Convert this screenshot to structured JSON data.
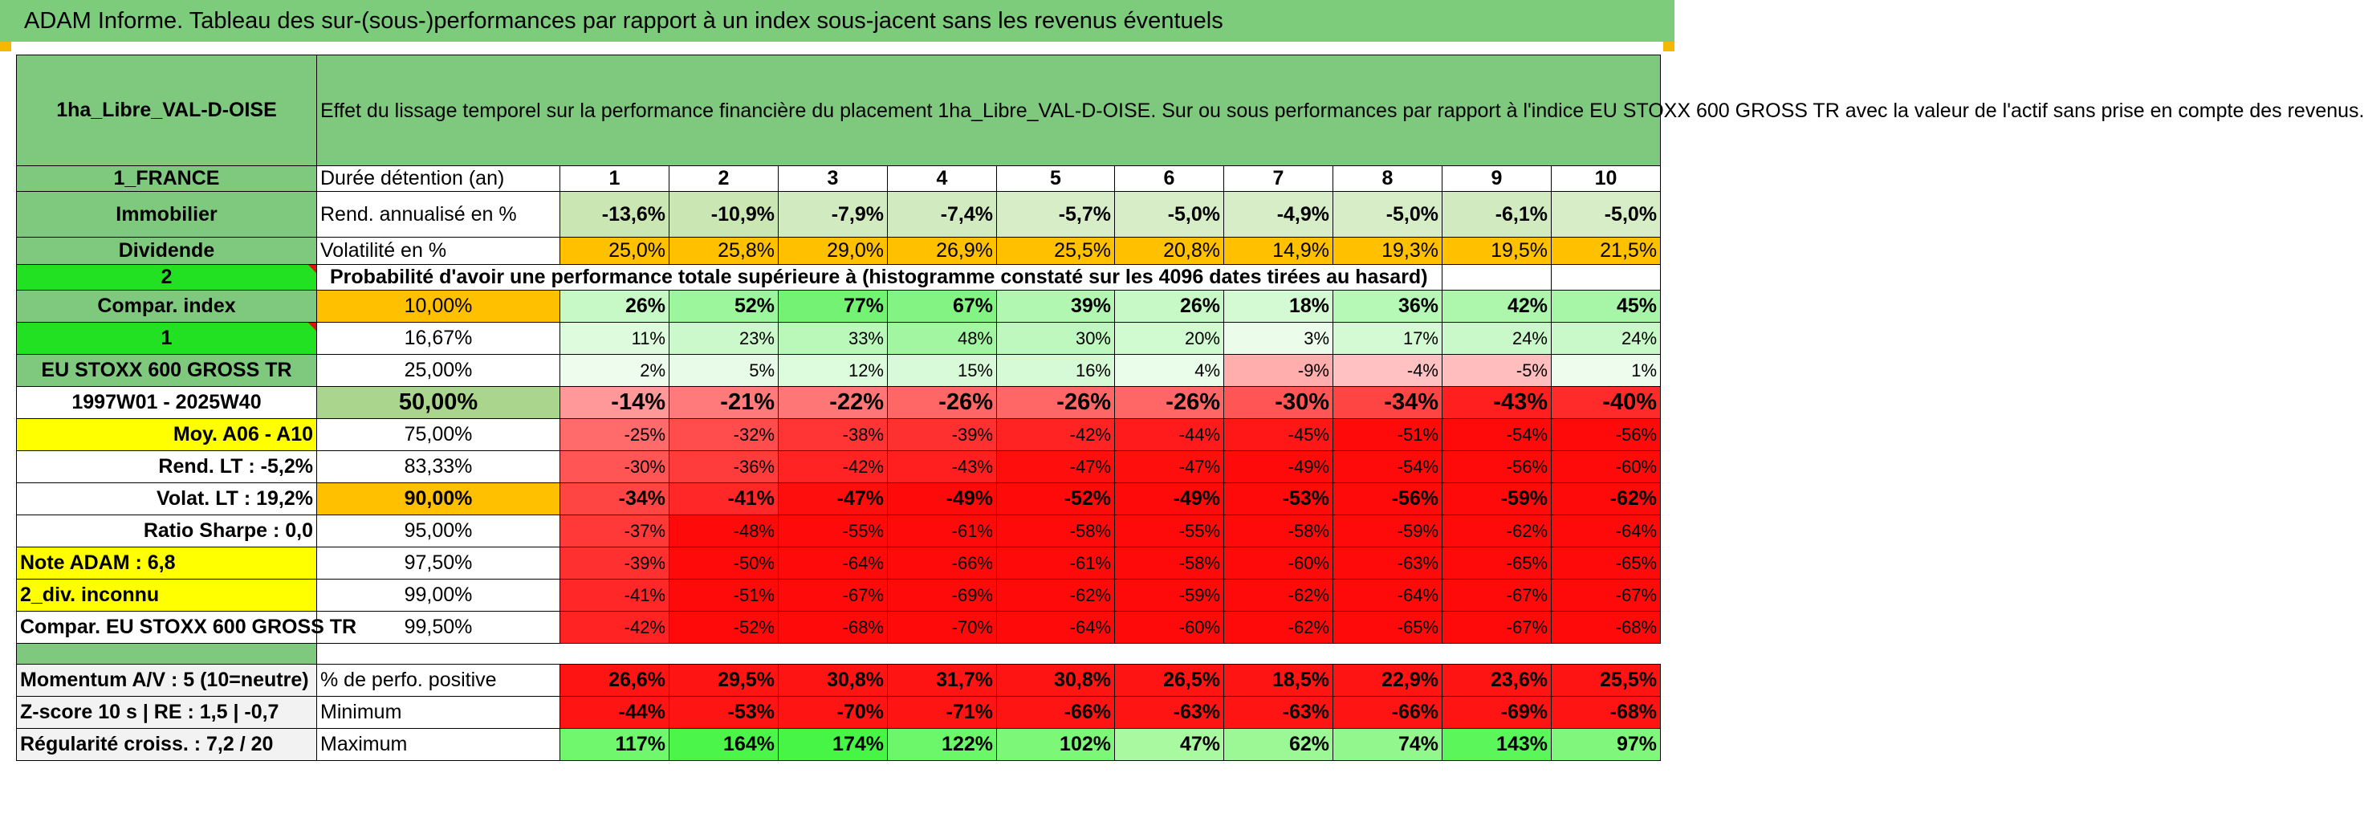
{
  "title": "ADAM Informe. Tableau des sur-(sous-)performances par rapport à un index sous-jacent sans les revenus éventuels",
  "placement_name": "1ha_Libre_VAL-D-OISE",
  "description": "Effet du lissage temporel sur la performance financière du placement 1ha_Libre_VAL-D-OISE. Sur ou sous performances par rapport à l'indice EU STOXX 600 GROSS TR avec la valeur de l'actif sans prise en compte des revenus.",
  "left": {
    "country": "1_FRANCE",
    "category": "Immobilier",
    "revenue_type": "Dividende",
    "selector_value": "2",
    "compar_index_label": "Compar. index",
    "index_selector": "1",
    "index_name": "EU STOXX 600 GROSS TR",
    "period": "1997W01 - 2025W40",
    "moy": "Moy. A06 - A10",
    "rend_lt": "Rend. LT :    -5,2%",
    "volat_lt": "Volat. LT :   19,2%",
    "sharpe": "Ratio Sharpe :    0,0",
    "note": "Note ADAM : 6,8",
    "div": "2_div. inconnu",
    "compar_full": "Compar. EU STOXX 600 GROSS TR",
    "momentum": "Momentum A/V : 5 (10=neutre)",
    "zscore": "Z-score 10 s | RE : 1,5 | -0,7",
    "regularite": "Régularité croiss. : 7,2 / 20"
  },
  "row_labels": {
    "duree": "Durée détention (an)",
    "rend": "Rend. annualisé en %",
    "vol": "Volatilité en %",
    "proba": "Probabilité d'avoir une performance totale supérieure à (histogramme constaté sur les 4096 dates tirées au hasard)",
    "perfo_pos": "% de perfo. positive",
    "minimum": "Minimum",
    "maximum": "Maximum"
  },
  "years": [
    "1",
    "2",
    "3",
    "4",
    "5",
    "6",
    "7",
    "8",
    "9",
    "10"
  ],
  "rend": [
    "-13,6%",
    "-10,9%",
    "-7,9%",
    "-7,4%",
    "-5,7%",
    "-5,0%",
    "-4,9%",
    "-5,0%",
    "-6,1%",
    "-5,0%"
  ],
  "vol": [
    "25,0%",
    "25,8%",
    "29,0%",
    "26,9%",
    "25,5%",
    "20,8%",
    "14,9%",
    "19,3%",
    "19,5%",
    "21,5%"
  ],
  "quantiles": [
    {
      "label": "10,00%",
      "values": [
        "26%",
        "52%",
        "77%",
        "67%",
        "39%",
        "26%",
        "18%",
        "36%",
        "42%",
        "45%"
      ]
    },
    {
      "label": "16,67%",
      "values": [
        "11%",
        "23%",
        "33%",
        "48%",
        "30%",
        "20%",
        "3%",
        "17%",
        "24%",
        "24%"
      ]
    },
    {
      "label": "25,00%",
      "values": [
        "2%",
        "5%",
        "12%",
        "15%",
        "16%",
        "4%",
        "-9%",
        "-4%",
        "-5%",
        "1%"
      ]
    },
    {
      "label": "50,00%",
      "values": [
        "-14%",
        "-21%",
        "-22%",
        "-26%",
        "-26%",
        "-26%",
        "-30%",
        "-34%",
        "-43%",
        "-40%"
      ]
    },
    {
      "label": "75,00%",
      "values": [
        "-25%",
        "-32%",
        "-38%",
        "-39%",
        "-42%",
        "-44%",
        "-45%",
        "-51%",
        "-54%",
        "-56%"
      ]
    },
    {
      "label": "83,33%",
      "values": [
        "-30%",
        "-36%",
        "-42%",
        "-43%",
        "-47%",
        "-47%",
        "-49%",
        "-54%",
        "-56%",
        "-60%"
      ]
    },
    {
      "label": "90,00%",
      "values": [
        "-34%",
        "-41%",
        "-47%",
        "-49%",
        "-52%",
        "-49%",
        "-53%",
        "-56%",
        "-59%",
        "-62%"
      ]
    },
    {
      "label": "95,00%",
      "values": [
        "-37%",
        "-48%",
        "-55%",
        "-61%",
        "-58%",
        "-55%",
        "-58%",
        "-59%",
        "-62%",
        "-64%"
      ]
    },
    {
      "label": "97,50%",
      "values": [
        "-39%",
        "-50%",
        "-64%",
        "-66%",
        "-61%",
        "-58%",
        "-60%",
        "-63%",
        "-65%",
        "-65%"
      ]
    },
    {
      "label": "99,00%",
      "values": [
        "-41%",
        "-51%",
        "-67%",
        "-69%",
        "-62%",
        "-59%",
        "-62%",
        "-64%",
        "-67%",
        "-67%"
      ]
    },
    {
      "label": "99,50%",
      "values": [
        "-42%",
        "-52%",
        "-68%",
        "-70%",
        "-64%",
        "-60%",
        "-62%",
        "-65%",
        "-67%",
        "-68%"
      ]
    }
  ],
  "perfo_pos": [
    "26,6%",
    "29,5%",
    "30,8%",
    "31,7%",
    "30,8%",
    "26,5%",
    "18,5%",
    "22,9%",
    "23,6%",
    "25,5%"
  ],
  "minimum": [
    "-44%",
    "-53%",
    "-70%",
    "-71%",
    "-66%",
    "-63%",
    "-63%",
    "-66%",
    "-69%",
    "-68%"
  ],
  "maximum": [
    "117%",
    "164%",
    "174%",
    "122%",
    "102%",
    "47%",
    "62%",
    "74%",
    "143%",
    "97%"
  ],
  "colors": {
    "header_green": "#7fc97f",
    "light_green": "#c9e6b3",
    "bright_green": "#22e022",
    "yellow": "#ffff00",
    "orange": "#ffc000",
    "red_text": "#e01010"
  }
}
